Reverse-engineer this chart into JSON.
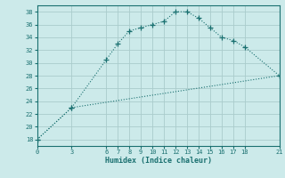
{
  "title": "",
  "xlabel": "Humidex (Indice chaleur)",
  "bg_color": "#cceaea",
  "grid_color": "#aacccc",
  "line_color": "#1a7070",
  "xlim": [
    0,
    21
  ],
  "ylim": [
    17,
    39
  ],
  "yticks": [
    18,
    20,
    22,
    24,
    26,
    28,
    30,
    32,
    34,
    36,
    38
  ],
  "xticks": [
    0,
    3,
    6,
    7,
    8,
    9,
    10,
    11,
    12,
    13,
    14,
    15,
    16,
    17,
    18,
    21
  ],
  "line1_x": [
    0,
    3,
    6,
    7,
    8,
    9,
    10,
    11,
    12,
    13,
    14,
    15,
    16,
    17,
    18,
    21
  ],
  "line1_y": [
    18,
    23,
    30.5,
    33,
    35,
    35.5,
    36,
    36.5,
    38,
    38,
    37,
    35.5,
    34,
    33.5,
    32.5,
    28
  ],
  "line2_x": [
    0,
    3,
    21
  ],
  "line2_y": [
    18,
    23,
    28
  ]
}
